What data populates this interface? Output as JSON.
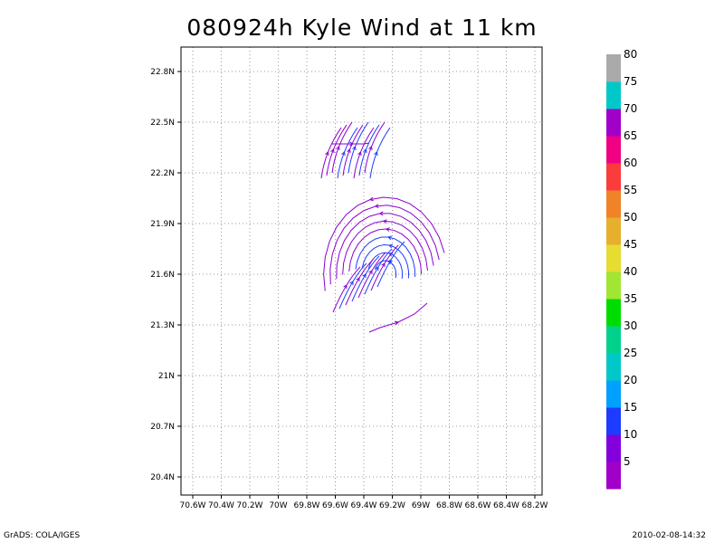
{
  "chart_data": {
    "type": "streamline",
    "title": "080924h Kyle Wind at 11 km",
    "x_ticks": [
      "70.6W",
      "70.4W",
      "70.2W",
      "70W",
      "69.8W",
      "69.6W",
      "69.4W",
      "69.2W",
      "69W",
      "68.8W",
      "68.6W",
      "68.4W",
      "68.2W"
    ],
    "y_ticks": [
      "22.8N",
      "22.5N",
      "22.2N",
      "21.9N",
      "21.6N",
      "21.3N",
      "21N",
      "20.7N",
      "20.4N"
    ],
    "xlim": [
      -70.6,
      -68.2
    ],
    "ylim": [
      20.4,
      22.8
    ],
    "x_units": "degrees longitude",
    "y_units": "degrees latitude",
    "grid": true,
    "colorbar": {
      "labels": [
        "5",
        "10",
        "15",
        "20",
        "25",
        "30",
        "35",
        "40",
        "45",
        "50",
        "55",
        "60",
        "65",
        "70",
        "75",
        "80"
      ],
      "colors": [
        "#a000c8",
        "#8200dc",
        "#1e3cff",
        "#00a0ff",
        "#00c8c8",
        "#00d28c",
        "#00dc00",
        "#a0e632",
        "#e6dc32",
        "#e6af2d",
        "#f08228",
        "#fa3c3c",
        "#f00082",
        "#a000c8",
        "#00c8c8",
        "#aaaaaa"
      ]
    },
    "wind_color_low": "#1e3cff",
    "wind_color_high": "#8c00d0"
  },
  "footer": {
    "left": "GrADS: COLA/IGES",
    "right": "2010-02-08-14:32"
  }
}
